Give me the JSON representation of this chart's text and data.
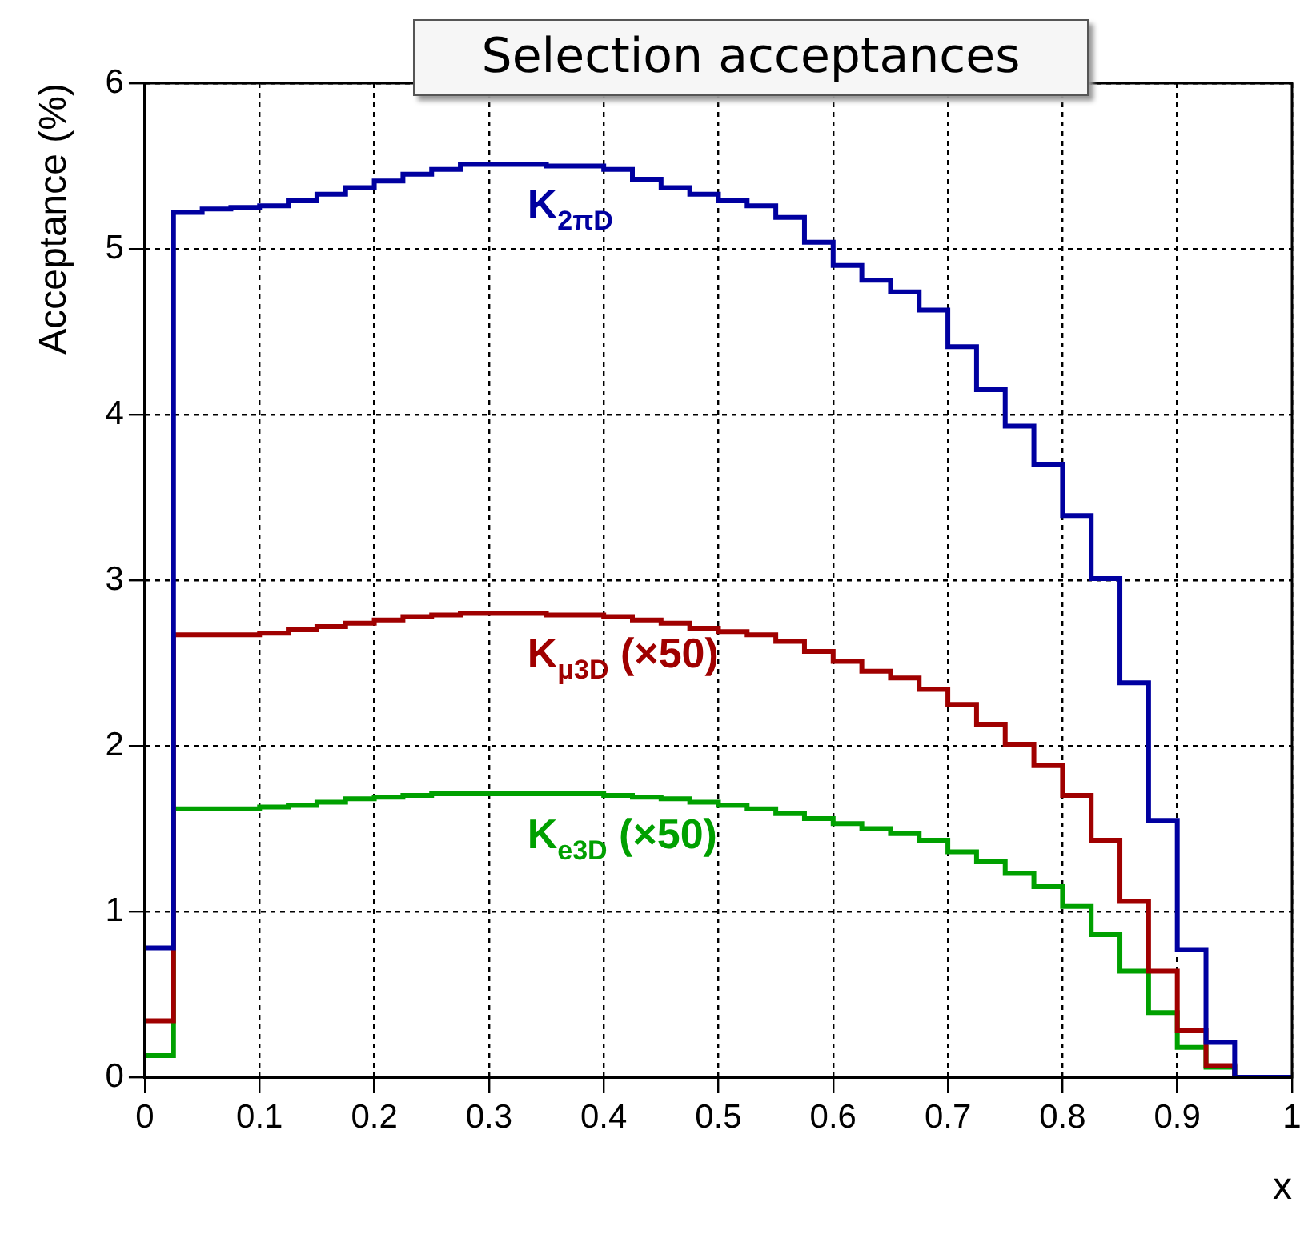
{
  "chart_data": {
    "type": "histogram",
    "title": "Selection acceptances",
    "xlabel": "x",
    "ylabel": "Acceptance (%)",
    "bins": [
      0,
      0.025,
      0.05,
      0.075,
      0.1,
      0.125,
      0.15,
      0.175,
      0.2,
      0.225,
      0.25,
      0.275,
      0.3,
      0.325,
      0.35,
      0.375,
      0.4,
      0.425,
      0.45,
      0.475,
      0.5,
      0.525,
      0.55,
      0.575,
      0.6,
      0.625,
      0.65,
      0.675,
      0.7,
      0.725,
      0.75,
      0.775,
      0.8,
      0.825,
      0.85,
      0.875,
      0.9,
      0.925,
      0.95,
      0.975,
      1
    ],
    "series": [
      {
        "name": "K$_{2πD}$",
        "color": "#0000a0",
        "values": [
          0.78,
          5.22,
          5.24,
          5.25,
          5.26,
          5.29,
          5.33,
          5.37,
          5.41,
          5.45,
          5.48,
          5.51,
          5.51,
          5.51,
          5.5,
          5.5,
          5.48,
          5.42,
          5.37,
          5.33,
          5.29,
          5.26,
          5.19,
          5.04,
          4.9,
          4.81,
          4.74,
          4.63,
          4.41,
          4.15,
          3.93,
          3.7,
          3.39,
          3.01,
          2.38,
          1.55,
          0.77,
          0.21,
          0,
          0
        ]
      },
      {
        "name": "K$_{μ3D}$ (×50)",
        "color": "#a00000",
        "values": [
          0.34,
          2.67,
          2.67,
          2.67,
          2.68,
          2.7,
          2.72,
          2.74,
          2.76,
          2.78,
          2.79,
          2.8,
          2.8,
          2.8,
          2.79,
          2.79,
          2.78,
          2.76,
          2.74,
          2.71,
          2.69,
          2.67,
          2.63,
          2.57,
          2.51,
          2.45,
          2.41,
          2.34,
          2.25,
          2.13,
          2.01,
          1.88,
          1.7,
          1.43,
          1.06,
          0.64,
          0.28,
          0.07,
          0,
          0
        ]
      },
      {
        "name": "K$_{e3D}$ (×50)",
        "color": "#00a000",
        "values": [
          0.13,
          1.62,
          1.62,
          1.62,
          1.63,
          1.64,
          1.66,
          1.68,
          1.69,
          1.7,
          1.71,
          1.71,
          1.71,
          1.71,
          1.71,
          1.71,
          1.7,
          1.69,
          1.68,
          1.66,
          1.64,
          1.62,
          1.59,
          1.56,
          1.53,
          1.5,
          1.47,
          1.43,
          1.36,
          1.3,
          1.23,
          1.15,
          1.03,
          0.86,
          0.64,
          0.39,
          0.18,
          0.06,
          0,
          0
        ]
      }
    ],
    "xlim": [
      0,
      1
    ],
    "ylim": [
      0,
      6
    ],
    "xticks": [
      0,
      0.1,
      0.2,
      0.3,
      0.4,
      0.5,
      0.6,
      0.7,
      0.8,
      0.9,
      1
    ],
    "yticks": [
      0,
      1,
      2,
      3,
      4,
      5,
      6
    ],
    "grid": true
  }
}
